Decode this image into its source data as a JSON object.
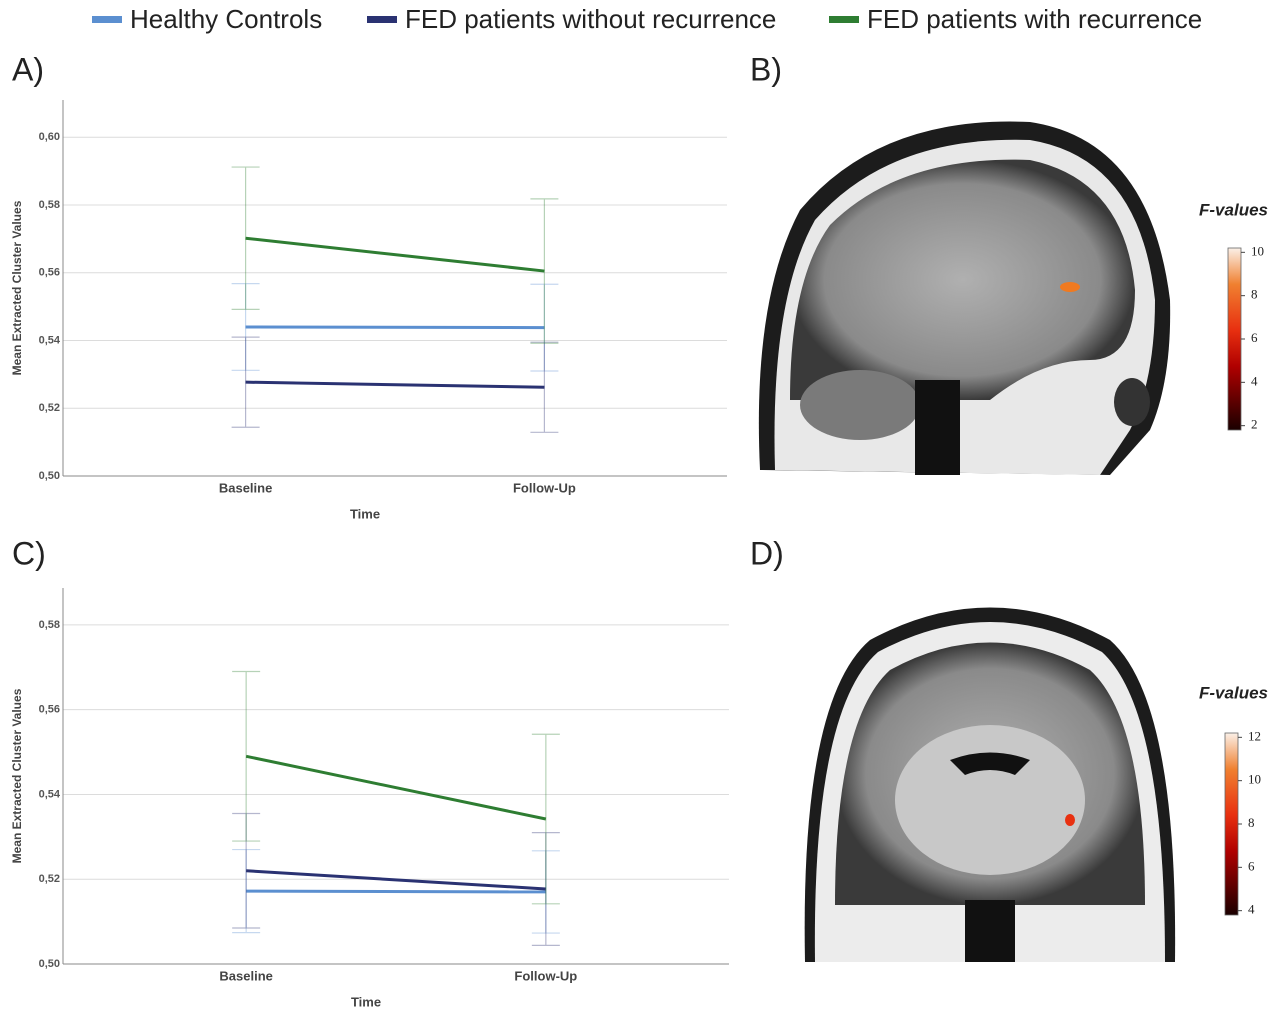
{
  "panels": [
    "A)",
    "B)",
    "C)",
    "D)"
  ],
  "chart_data": [
    {
      "type": "line",
      "x_label": "Time",
      "y_label": "Mean Extracted Cluster Values",
      "categories": [
        "Baseline",
        "Follow-Up"
      ],
      "ylim": [
        0.5,
        0.611
      ],
      "yticks": [
        {
          "value": 0.5,
          "label": "0,50"
        },
        {
          "value": 0.52,
          "label": "0,52"
        },
        {
          "value": 0.54,
          "label": "0,54"
        },
        {
          "value": 0.56,
          "label": "0,56"
        },
        {
          "value": 0.58,
          "label": "0,58"
        },
        {
          "value": 0.6,
          "label": "0,60"
        }
      ],
      "grid": true,
      "series": [
        {
          "name": "Healthy Controls",
          "color": "#5b8fd0",
          "values": [
            0.544,
            0.5438
          ],
          "errors": [
            0.0128,
            0.0128
          ]
        },
        {
          "name": "FED patients without recurrence",
          "color": "#2a3272",
          "values": [
            0.5277,
            0.5262
          ],
          "errors": [
            0.0133,
            0.0133
          ]
        },
        {
          "name": "FED patients with recurrence",
          "color": "#2e7d32",
          "values": [
            0.5702,
            0.5605
          ],
          "errors": [
            0.021,
            0.0213
          ]
        }
      ]
    },
    {
      "type": "line",
      "x_label": "Time",
      "y_label": "Mean Extracted Cluster Values",
      "categories": [
        "Baseline",
        "Follow-Up"
      ],
      "ylim": [
        0.5,
        0.5887
      ],
      "yticks": [
        {
          "value": 0.5,
          "label": "0,50"
        },
        {
          "value": 0.52,
          "label": "0,52"
        },
        {
          "value": 0.54,
          "label": "0,54"
        },
        {
          "value": 0.56,
          "label": "0,56"
        },
        {
          "value": 0.58,
          "label": "0,58"
        }
      ],
      "grid": true,
      "series": [
        {
          "name": "Healthy Controls",
          "color": "#5b8fd0",
          "values": [
            0.5172,
            0.517
          ],
          "errors": [
            0.0098,
            0.0097
          ]
        },
        {
          "name": "FED patients without recurrence",
          "color": "#2a3272",
          "values": [
            0.522,
            0.5177
          ],
          "errors": [
            0.0135,
            0.0133
          ]
        },
        {
          "name": "FED patients with recurrence",
          "color": "#2e7d32",
          "values": [
            0.549,
            0.5342
          ],
          "errors": [
            0.02,
            0.02
          ]
        }
      ]
    }
  ],
  "colorbars": [
    {
      "title": "F-values",
      "lim": [
        1.8,
        10.2
      ],
      "ticks": [
        2,
        4,
        6,
        8,
        10
      ]
    },
    {
      "title": "F-values",
      "lim": [
        3.8,
        12.2
      ],
      "ticks": [
        4,
        6,
        8,
        10,
        12
      ]
    }
  ]
}
